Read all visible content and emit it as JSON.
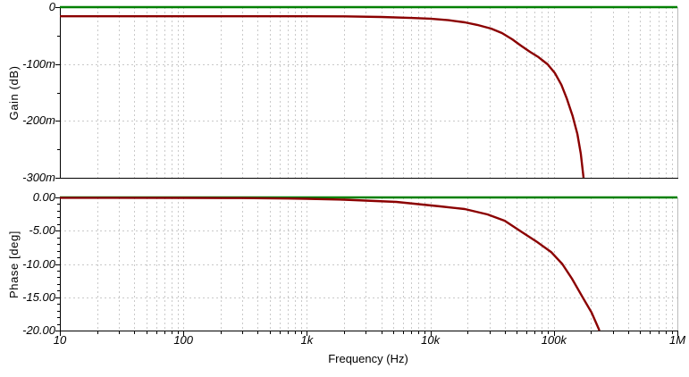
{
  "figure": {
    "xlabel": "Frequency (Hz)",
    "x_scale": "log",
    "x_ticks": [
      {
        "f": 10,
        "label": "10"
      },
      {
        "f": 100,
        "label": "100"
      },
      {
        "f": 1000,
        "label": "1k"
      },
      {
        "f": 10000,
        "label": "10k"
      },
      {
        "f": 100000,
        "label": "100k"
      },
      {
        "f": 1000000,
        "label": "1M"
      }
    ],
    "colors": {
      "background": "#ffffff",
      "grid": "#c9c9c9",
      "axis": "#000000",
      "text": "#000000",
      "plot_border": "#bbbbbb",
      "reference_trace": "#008000",
      "signal_trace": "#8b0000"
    }
  },
  "chart_data": [
    {
      "type": "line",
      "title": "",
      "ylabel": "Gain (dB)",
      "xlabel": "Frequency (Hz)",
      "x_scale": "log",
      "xlim": [
        10,
        1000000
      ],
      "ylim": [
        -0.3,
        0
      ],
      "grid": "dashed",
      "legend": "none",
      "y_minor_step": 0.05,
      "y_ticks": [
        {
          "v": 0,
          "label": "0"
        },
        {
          "v": -0.1,
          "label": "-100m"
        },
        {
          "v": -0.2,
          "label": "-200m"
        },
        {
          "v": -0.3,
          "label": "-300m"
        }
      ],
      "series": [
        {
          "name": "zero-db-reference",
          "color": "#008000",
          "points": [
            [
              10,
              0
            ],
            [
              1000000,
              0
            ]
          ]
        },
        {
          "name": "gain",
          "color": "#8b0000",
          "points": [
            [
              10,
              -0.016
            ],
            [
              100,
              -0.016
            ],
            [
              1000,
              -0.016
            ],
            [
              2000,
              -0.0162
            ],
            [
              4000,
              -0.0172
            ],
            [
              7000,
              -0.019
            ],
            [
              10000,
              -0.0202
            ],
            [
              14000,
              -0.023
            ],
            [
              19000,
              -0.0267
            ],
            [
              24000,
              -0.0312
            ],
            [
              31000,
              -0.0377
            ],
            [
              38000,
              -0.0455
            ],
            [
              46000,
              -0.0565
            ],
            [
              54000,
              -0.0675
            ],
            [
              64000,
              -0.0785
            ],
            [
              75000,
              -0.0878
            ],
            [
              89000,
              -0.1005
            ],
            [
              102000,
              -0.116
            ],
            [
              115000,
              -0.1365
            ],
            [
              127000,
              -0.16
            ],
            [
              142000,
              -0.1915
            ],
            [
              155000,
              -0.223
            ],
            [
              165000,
              -0.2575
            ],
            [
              174000,
              -0.3
            ]
          ]
        }
      ]
    },
    {
      "type": "line",
      "title": "",
      "ylabel": "Phase [deg]",
      "xlabel": "Frequency (Hz)",
      "x_scale": "log",
      "xlim": [
        10,
        1000000
      ],
      "ylim": [
        -20,
        0
      ],
      "grid": "dashed",
      "legend": "none",
      "y_minor_step": 1,
      "y_ticks": [
        {
          "v": 0,
          "label": "0.00"
        },
        {
          "v": -5,
          "label": "-5.00"
        },
        {
          "v": -10,
          "label": "-10.00"
        },
        {
          "v": -15,
          "label": "-15.00"
        },
        {
          "v": -20,
          "label": "-20.00"
        }
      ],
      "series": [
        {
          "name": "zero-deg-reference",
          "color": "#008000",
          "points": [
            [
              10,
              0
            ],
            [
              1000000,
              0
            ]
          ]
        },
        {
          "name": "phase",
          "color": "#8b0000",
          "points": [
            [
              10,
              -0.05
            ],
            [
              100,
              -0.07
            ],
            [
              300,
              -0.1
            ],
            [
              700,
              -0.16
            ],
            [
              1000,
              -0.2
            ],
            [
              2000,
              -0.33
            ],
            [
              5300,
              -0.67
            ],
            [
              12000,
              -1.34
            ],
            [
              19000,
              -1.74
            ],
            [
              29000,
              -2.55
            ],
            [
              40000,
              -3.5
            ],
            [
              54000,
              -5.1
            ],
            [
              72000,
              -6.6
            ],
            [
              95000,
              -8.2
            ],
            [
              117000,
              -10.0
            ],
            [
              140000,
              -12.2
            ],
            [
              171000,
              -15.0
            ],
            [
              202000,
              -17.3
            ],
            [
              234000,
              -20.0
            ]
          ]
        }
      ]
    }
  ]
}
